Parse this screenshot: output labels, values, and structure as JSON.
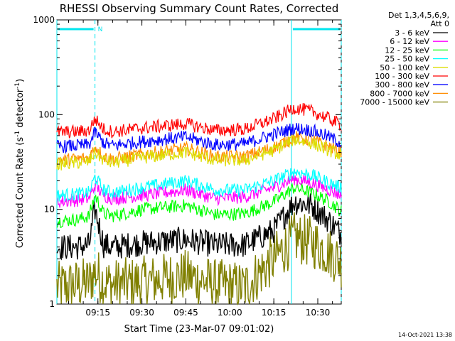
{
  "chart_data": {
    "type": "line",
    "title": "RHESSI Observing Summary Count Rates, Corrected",
    "xlabel": "Start Time (23-Mar-07 09:01:02)",
    "ylabel": "Corrected Count Rate (s",
    "ylabel_sup1": "-1",
    "ylabel_mid": " detector",
    "ylabel_sup2": "-1",
    "ylabel_end": ")",
    "yscale": "log",
    "ylim": [
      1,
      1000
    ],
    "xlim_minutes": [
      "09:01",
      "10:38"
    ],
    "y_ticks": [
      {
        "label": "1000",
        "value": 1000
      },
      {
        "label": "100",
        "value": 100
      },
      {
        "label": "10",
        "value": 10
      },
      {
        "label": "1",
        "value": 1
      }
    ],
    "x_ticks": [
      {
        "label": "09:15",
        "value": "09:15"
      },
      {
        "label": "09:30",
        "value": "09:30"
      },
      {
        "label": "09:45",
        "value": "09:45"
      },
      {
        "label": "10:00",
        "value": "10:00"
      },
      {
        "label": "10:15",
        "value": "10:15"
      },
      {
        "label": "10:30",
        "value": "10:30"
      }
    ],
    "legend_header": [
      "Det 1,3,4,5,6,9,",
      "Att 0"
    ],
    "x": [
      "09:01",
      "09:08",
      "09:12",
      "09:14",
      "09:17",
      "09:20",
      "09:30",
      "09:45",
      "09:55",
      "10:05",
      "10:15",
      "10:22",
      "10:28",
      "10:34",
      "10:38"
    ],
    "series": [
      {
        "name": "3 - 6 keV",
        "color": "#000000",
        "values": [
          4.0,
          4.0,
          4.2,
          10,
          4.2,
          4.0,
          4.4,
          4.8,
          4.2,
          4.2,
          6.0,
          12,
          11,
          7.5,
          5.5
        ]
      },
      {
        "name": "6 - 12 keV",
        "color": "#ff00ff",
        "values": [
          12,
          12.5,
          13,
          18,
          14,
          13,
          14,
          16,
          13,
          13.5,
          17,
          21,
          19,
          16,
          14
        ]
      },
      {
        "name": "12 - 25 keV",
        "color": "#00ff00",
        "values": [
          7.5,
          7.8,
          8.5,
          14,
          9.0,
          8.5,
          10,
          11,
          8.8,
          9.0,
          12,
          17,
          15,
          12,
          9.5
        ]
      },
      {
        "name": "25 - 50 keV",
        "color": "#00ffff",
        "values": [
          14,
          14.5,
          15,
          22,
          16,
          15,
          17,
          20,
          16,
          16,
          20,
          25,
          23,
          19,
          17
        ]
      },
      {
        "name": "50 - 100 keV",
        "color": "#dddd00",
        "values": [
          30,
          31,
          32,
          40,
          33,
          31,
          35,
          40,
          33,
          33,
          42,
          55,
          50,
          42,
          37
        ]
      },
      {
        "name": "100 - 300 keV",
        "color": "#ff0000",
        "values": [
          65,
          66,
          68,
          90,
          70,
          66,
          72,
          80,
          68,
          70,
          90,
          118,
          108,
          90,
          78
        ]
      },
      {
        "name": "300 - 800 keV",
        "color": "#0000ff",
        "values": [
          46,
          47,
          48,
          65,
          50,
          47,
          52,
          58,
          48,
          49,
          62,
          72,
          68,
          58,
          50
        ]
      },
      {
        "name": "800 - 7000 keV",
        "color": "#ff8c00",
        "values": [
          33,
          34,
          35,
          46,
          36,
          34,
          38,
          44,
          36,
          36,
          45,
          58,
          54,
          46,
          40
        ]
      },
      {
        "name": "7000 - 15000 keV",
        "color": "#808000",
        "values": [
          1.5,
          1.6,
          1.7,
          2.2,
          1.7,
          1.6,
          1.7,
          2.0,
          1.6,
          1.5,
          3.0,
          5.0,
          4.5,
          3.5,
          2.8
        ]
      }
    ],
    "flags": {
      "night_label": "N",
      "night_intervals": [
        [
          "09:01",
          "09:14"
        ],
        [
          "10:21",
          "10:38"
        ]
      ],
      "vertical_lines": [
        "09:01",
        "09:14",
        "10:21",
        "10:38"
      ],
      "color": "#00e5ee"
    },
    "grid": false,
    "legend_position": "right"
  },
  "stamp": "14-Oct-2021 13:38"
}
